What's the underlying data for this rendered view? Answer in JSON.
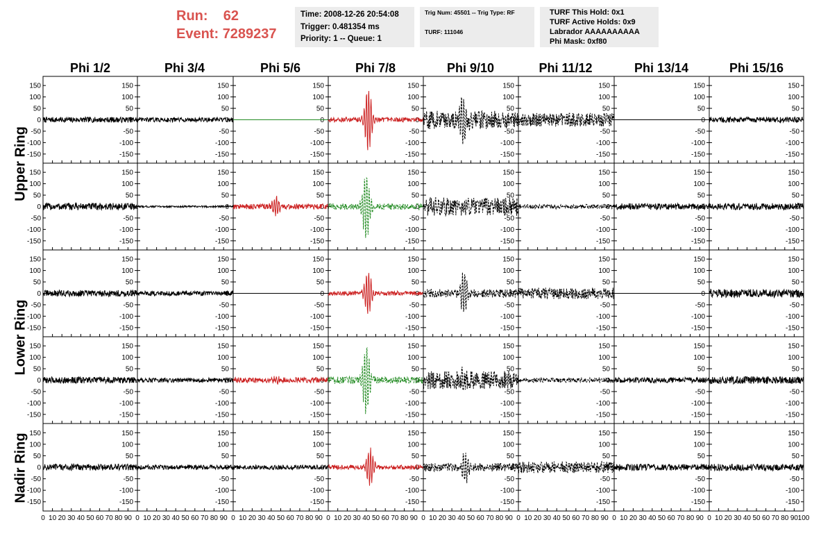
{
  "header": {
    "run_label": "Run:",
    "run_value": "62",
    "event_label": "Event:",
    "event_value": "7289237"
  },
  "time_box": {
    "time": "Time: 2008-12-26 20:54:08",
    "trigger": "Trigger: 0.481354 ms",
    "priority": "Priority: 1 -- Queue: 1"
  },
  "trig_box": {
    "trig_line": "Trig Num: 45501 -- Trig Type: RF",
    "turf_line": "TURF: 111046"
  },
  "turf_box": {
    "this_hold": "TURF This Hold: 0x1",
    "active_holds": "TURF Active Holds: 0x9",
    "labrador": "Labrador AAAAAAAAAA",
    "phi_mask": "Phi Mask: 0xf80"
  },
  "colors": {
    "header_red": "#d9534f",
    "trace_black": "#000000",
    "trace_red": "#cc2222",
    "trace_green": "#228b22",
    "info_box_bg": "#ececec"
  },
  "chart_data": {
    "type": "line",
    "columns": [
      "Phi 1/2",
      "Phi 3/4",
      "Phi 5/6",
      "Phi 7/8",
      "Phi 9/10",
      "Phi 11/12",
      "Phi 13/14",
      "Phi 15/16"
    ],
    "rows": [
      "Upper Ring",
      "Lower Ring",
      "Nadir Ring"
    ],
    "ring_label_spans": [
      [
        0,
        1
      ],
      [
        2,
        3
      ],
      [
        4,
        4
      ]
    ],
    "xlim": [
      0,
      100
    ],
    "ylim": [
      -190,
      190
    ],
    "y_ticks": [
      -150,
      -100,
      -50,
      0,
      50,
      100,
      150
    ],
    "x_tick_labels": [
      "0",
      "10",
      "20",
      "30",
      "40",
      "50",
      "60",
      "70",
      "80",
      "90",
      "100"
    ],
    "panels": [
      [
        {
          "style": "solid",
          "color": "black",
          "amp": 12,
          "pulse": 0,
          "pulse_center": 0,
          "flat": false
        },
        {
          "style": "solid",
          "color": "black",
          "amp": 10,
          "pulse": 0,
          "pulse_center": 0,
          "flat": false
        },
        {
          "style": "solid",
          "color": "green",
          "amp": 0,
          "pulse": 0,
          "pulse_center": 0,
          "flat": true
        },
        {
          "style": "solid",
          "color": "red",
          "amp": 10,
          "pulse": 140,
          "pulse_center": 42,
          "flat": false
        },
        {
          "style": "dashed",
          "color": "black",
          "amp": 40,
          "pulse": 90,
          "pulse_center": 42,
          "flat": false
        },
        {
          "style": "dashed",
          "color": "black",
          "amp": 30,
          "pulse": 0,
          "pulse_center": 0,
          "flat": false
        },
        {
          "style": "solid",
          "color": "black",
          "amp": 0,
          "pulse": 0,
          "pulse_center": 0,
          "flat": true
        },
        {
          "style": "solid",
          "color": "black",
          "amp": 12,
          "pulse": 0,
          "pulse_center": 0,
          "flat": false
        }
      ],
      [
        {
          "style": "solid",
          "color": "black",
          "amp": 16,
          "pulse": 0,
          "pulse_center": 0,
          "flat": false
        },
        {
          "style": "solid",
          "color": "black",
          "amp": 4,
          "pulse": 0,
          "pulse_center": 0,
          "flat": false
        },
        {
          "style": "solid",
          "color": "red",
          "amp": 12,
          "pulse": 40,
          "pulse_center": 45,
          "flat": false
        },
        {
          "style": "dashed",
          "color": "green",
          "amp": 14,
          "pulse": 150,
          "pulse_center": 40,
          "flat": false
        },
        {
          "style": "dashed",
          "color": "black",
          "amp": 40,
          "pulse": 20,
          "pulse_center": 40,
          "flat": false
        },
        {
          "style": "dashed",
          "color": "black",
          "amp": 10,
          "pulse": 0,
          "pulse_center": 0,
          "flat": false
        },
        {
          "style": "solid",
          "color": "black",
          "amp": 14,
          "pulse": 0,
          "pulse_center": 0,
          "flat": false
        },
        {
          "style": "solid",
          "color": "black",
          "amp": 15,
          "pulse": 0,
          "pulse_center": 0,
          "flat": false
        }
      ],
      [
        {
          "style": "solid",
          "color": "black",
          "amp": 14,
          "pulse": 0,
          "pulse_center": 0,
          "flat": false
        },
        {
          "style": "solid",
          "color": "black",
          "amp": 10,
          "pulse": 0,
          "pulse_center": 0,
          "flat": false
        },
        {
          "style": "solid",
          "color": "black",
          "amp": 0,
          "pulse": 0,
          "pulse_center": 0,
          "flat": true
        },
        {
          "style": "solid",
          "color": "red",
          "amp": 10,
          "pulse": 100,
          "pulse_center": 42,
          "flat": false
        },
        {
          "style": "dashed",
          "color": "black",
          "amp": 18,
          "pulse": 90,
          "pulse_center": 43,
          "flat": false
        },
        {
          "style": "dashed",
          "color": "black",
          "amp": 25,
          "pulse": 0,
          "pulse_center": 0,
          "flat": false
        },
        {
          "style": "solid",
          "color": "black",
          "amp": 0,
          "pulse": 0,
          "pulse_center": 0,
          "flat": true
        },
        {
          "style": "solid",
          "color": "black",
          "amp": 18,
          "pulse": 0,
          "pulse_center": 0,
          "flat": false
        }
      ],
      [
        {
          "style": "solid",
          "color": "black",
          "amp": 14,
          "pulse": 0,
          "pulse_center": 0,
          "flat": false
        },
        {
          "style": "solid",
          "color": "black",
          "amp": 10,
          "pulse": 0,
          "pulse_center": 0,
          "flat": false
        },
        {
          "style": "solid",
          "color": "red",
          "amp": 12,
          "pulse": 15,
          "pulse_center": 45,
          "flat": false
        },
        {
          "style": "dashed",
          "color": "green",
          "amp": 16,
          "pulse": 150,
          "pulse_center": 40,
          "flat": false
        },
        {
          "style": "dashed",
          "color": "black",
          "amp": 40,
          "pulse": 25,
          "pulse_center": 40,
          "flat": false
        },
        {
          "style": "dashed",
          "color": "black",
          "amp": 10,
          "pulse": 0,
          "pulse_center": 0,
          "flat": false
        },
        {
          "style": "solid",
          "color": "black",
          "amp": 12,
          "pulse": 0,
          "pulse_center": 0,
          "flat": false
        },
        {
          "style": "solid",
          "color": "black",
          "amp": 16,
          "pulse": 0,
          "pulse_center": 0,
          "flat": false
        }
      ],
      [
        {
          "style": "solid",
          "color": "black",
          "amp": 14,
          "pulse": 0,
          "pulse_center": 0,
          "flat": false
        },
        {
          "style": "solid",
          "color": "black",
          "amp": 10,
          "pulse": 0,
          "pulse_center": 0,
          "flat": false
        },
        {
          "style": "solid",
          "color": "black",
          "amp": 10,
          "pulse": 0,
          "pulse_center": 0,
          "flat": false
        },
        {
          "style": "solid",
          "color": "red",
          "amp": 10,
          "pulse": 80,
          "pulse_center": 44,
          "flat": false
        },
        {
          "style": "dashed",
          "color": "black",
          "amp": 18,
          "pulse": 70,
          "pulse_center": 44,
          "flat": false
        },
        {
          "style": "dashed",
          "color": "black",
          "amp": 25,
          "pulse": 0,
          "pulse_center": 0,
          "flat": false
        },
        {
          "style": "solid",
          "color": "black",
          "amp": 14,
          "pulse": 0,
          "pulse_center": 0,
          "flat": false
        },
        {
          "style": "solid",
          "color": "black",
          "amp": 15,
          "pulse": 0,
          "pulse_center": 0,
          "flat": false
        }
      ]
    ]
  }
}
